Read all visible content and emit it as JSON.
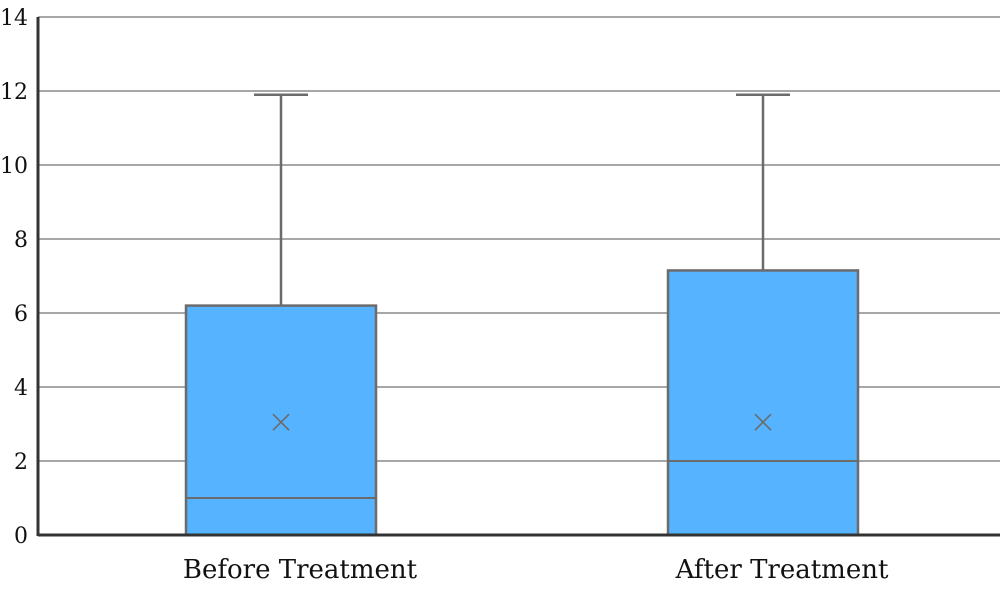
{
  "chart_data": {
    "type": "box",
    "title": "",
    "xlabel": "",
    "ylabel": "",
    "ylim": [
      0,
      14
    ],
    "yticks": [
      "0",
      "2",
      "4",
      "6",
      "8",
      "10",
      "12",
      "14"
    ],
    "grid": true,
    "categories": [
      "Before Treatment",
      "After Treatment"
    ],
    "boxes": [
      {
        "category": "Before Treatment",
        "min": 0,
        "q1": 0,
        "median": 1,
        "q3": 6.2,
        "max": 11.9,
        "mean": 3.05
      },
      {
        "category": "After Treatment",
        "min": 0,
        "q1": 0,
        "median": 2,
        "q3": 7.15,
        "max": 11.9,
        "mean": 3.05
      }
    ],
    "colors": {
      "box_fill": "#55B3FF",
      "box_stroke": "#6B6B6B",
      "grid": "#8A8A8A",
      "axis": "#333333"
    }
  }
}
